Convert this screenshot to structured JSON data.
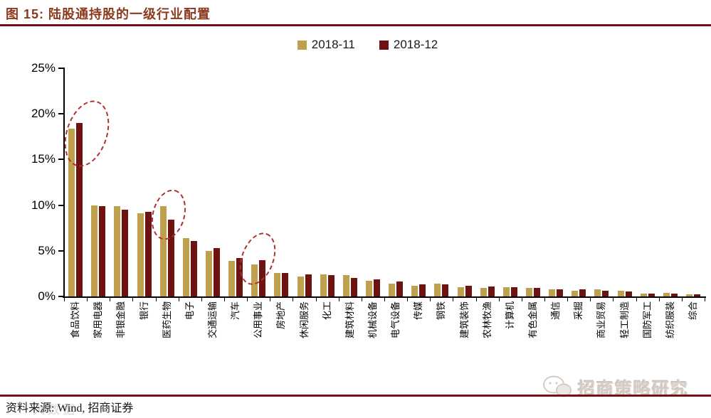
{
  "figure": {
    "title": "图 15: 陆股通持股的一级行业配置",
    "source_note": "资料来源: Wind, 招商证券",
    "watermark_right": "招商策略研究",
    "watermark_left": "大数据"
  },
  "legend": [
    {
      "label": "2018-11",
      "color": "#BFA14D"
    },
    {
      "label": "2018-12",
      "color": "#6F1310"
    }
  ],
  "colors": {
    "title": "#8C3A1E",
    "rule": "#6E1311",
    "annotation_ellipse": "#B03030",
    "series_2018_11": "#BFA14D",
    "series_2018_12": "#6F1310"
  },
  "chart_data": {
    "type": "bar",
    "title": "陆股通持股的一级行业配置",
    "xlabel": "",
    "ylabel": "",
    "ylim": [
      0,
      25
    ],
    "grid": false,
    "legend_position": "top-center",
    "y_ticks": [
      {
        "label": "0%",
        "value": 0
      },
      {
        "label": "5%",
        "value": 5
      },
      {
        "label": "10%",
        "value": 10
      },
      {
        "label": "15%",
        "value": 15
      },
      {
        "label": "20%",
        "value": 20
      },
      {
        "label": "25%",
        "value": 25
      }
    ],
    "categories": [
      "食品饮料",
      "家用电器",
      "非银金融",
      "银行",
      "医药生物",
      "电子",
      "交通运输",
      "汽车",
      "公用事业",
      "房地产",
      "休闲服务",
      "化工",
      "建筑材料",
      "机械设备",
      "电气设备",
      "传媒",
      "钢铁",
      "建筑装饰",
      "农林牧渔",
      "计算机",
      "有色金属",
      "通信",
      "采掘",
      "商业贸易",
      "轻工制造",
      "国防军工",
      "纺织服装",
      "综合"
    ],
    "series": [
      {
        "name": "2018-11",
        "color": "#BFA14D",
        "values": [
          18.4,
          10.0,
          9.9,
          9.1,
          9.9,
          6.4,
          5.0,
          3.9,
          3.5,
          2.6,
          2.2,
          2.4,
          2.3,
          1.7,
          1.4,
          1.2,
          1.4,
          1.0,
          0.9,
          1.0,
          0.9,
          0.8,
          0.6,
          0.75,
          0.6,
          0.35,
          0.4,
          0.25
        ]
      },
      {
        "name": "2018-12",
        "color": "#6F1310",
        "values": [
          19.0,
          9.9,
          9.5,
          9.3,
          8.4,
          6.1,
          5.3,
          4.2,
          4.0,
          2.6,
          2.4,
          2.3,
          2.0,
          1.9,
          1.6,
          1.3,
          1.3,
          1.2,
          1.1,
          1.0,
          0.9,
          0.8,
          0.75,
          0.6,
          0.55,
          0.3,
          0.3,
          0.25
        ]
      }
    ],
    "annotations": [
      {
        "type": "dashed-ellipse",
        "category": "食品饮料",
        "category_index": 0
      },
      {
        "type": "dashed-ellipse",
        "category": "医药生物",
        "category_index": 4
      },
      {
        "type": "dashed-ellipse",
        "category": "公用事业",
        "category_index": 8
      }
    ]
  }
}
